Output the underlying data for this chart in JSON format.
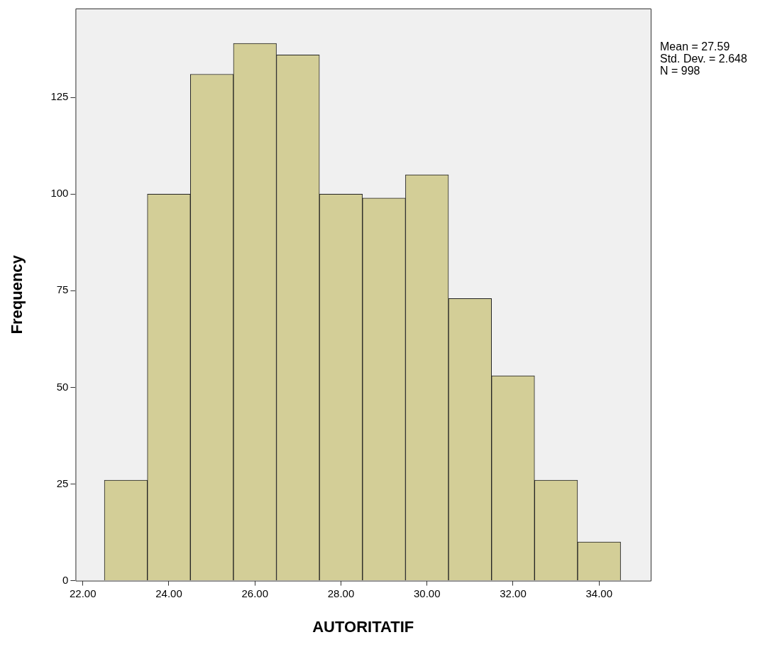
{
  "chart_data": {
    "type": "histogram",
    "xlabel": "AUTORITATIF",
    "ylabel": "Frequency",
    "bins": [
      22.5,
      23.5,
      24.5,
      25.5,
      26.5,
      27.5,
      28.5,
      29.5,
      30.5,
      31.5,
      32.5,
      33.5,
      34.5
    ],
    "values": [
      26,
      100,
      131,
      139,
      136,
      100,
      99,
      105,
      73,
      53,
      26,
      10
    ],
    "color": "#d3ce97",
    "xlim": [
      21.83,
      35.2
    ],
    "xticks": [
      {
        "value": 22,
        "label": "22.00"
      },
      {
        "value": 24,
        "label": "24.00"
      },
      {
        "value": 26,
        "label": "26.00"
      },
      {
        "value": 28,
        "label": "28.00"
      },
      {
        "value": 30,
        "label": "30.00"
      },
      {
        "value": 32,
        "label": "32.00"
      },
      {
        "value": 34,
        "label": "34.00"
      }
    ],
    "ylim": [
      0,
      148
    ],
    "yticks": [
      0,
      25,
      50,
      75,
      100,
      125
    ],
    "grid": false,
    "legend": false,
    "annotations": [
      "Mean = 27.59",
      "Std. Dev. = 2.648",
      "N = 998"
    ]
  }
}
